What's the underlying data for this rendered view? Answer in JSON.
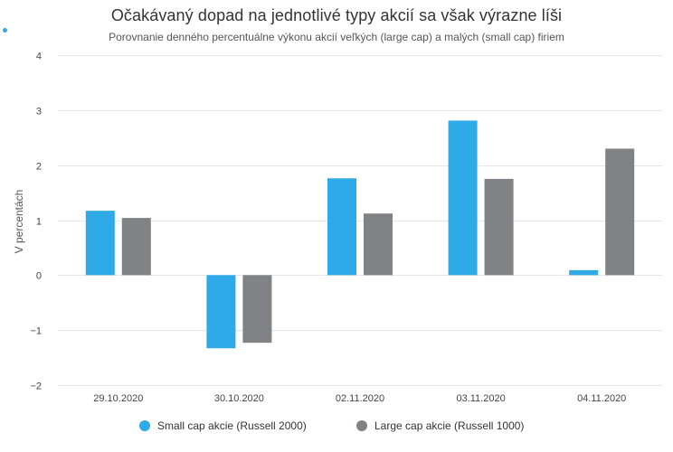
{
  "chart_data": {
    "type": "bar",
    "title": "Očakávaný dopad na jednotlivé typy akcií sa však výrazne líši",
    "subtitle": "Porovnanie denného percentuálne výkonu akcií veľkých (large cap) a malých (small cap) firiem",
    "xlabel": "",
    "ylabel": "V percentách",
    "ylim": [
      -2,
      4
    ],
    "yticks": [
      4,
      3,
      2,
      1,
      0,
      -1,
      -2
    ],
    "ytick_labels": [
      "4",
      "3",
      "2",
      "1",
      "0",
      "−1",
      "−2"
    ],
    "categories": [
      "29.10.2020",
      "30.10.2020",
      "02.11.2020",
      "03.11.2020",
      "04.11.2020"
    ],
    "grid": true,
    "legend_position": "bottom",
    "series": [
      {
        "name": "Small cap akcie (Russell 2000)",
        "color": "#2eaae8",
        "values": [
          1.17,
          -1.33,
          1.76,
          2.81,
          0.09
        ]
      },
      {
        "name": "Large cap akcie (Russell 1000)",
        "color": "#808286",
        "values": [
          1.04,
          -1.23,
          1.12,
          1.75,
          2.3
        ]
      }
    ]
  }
}
